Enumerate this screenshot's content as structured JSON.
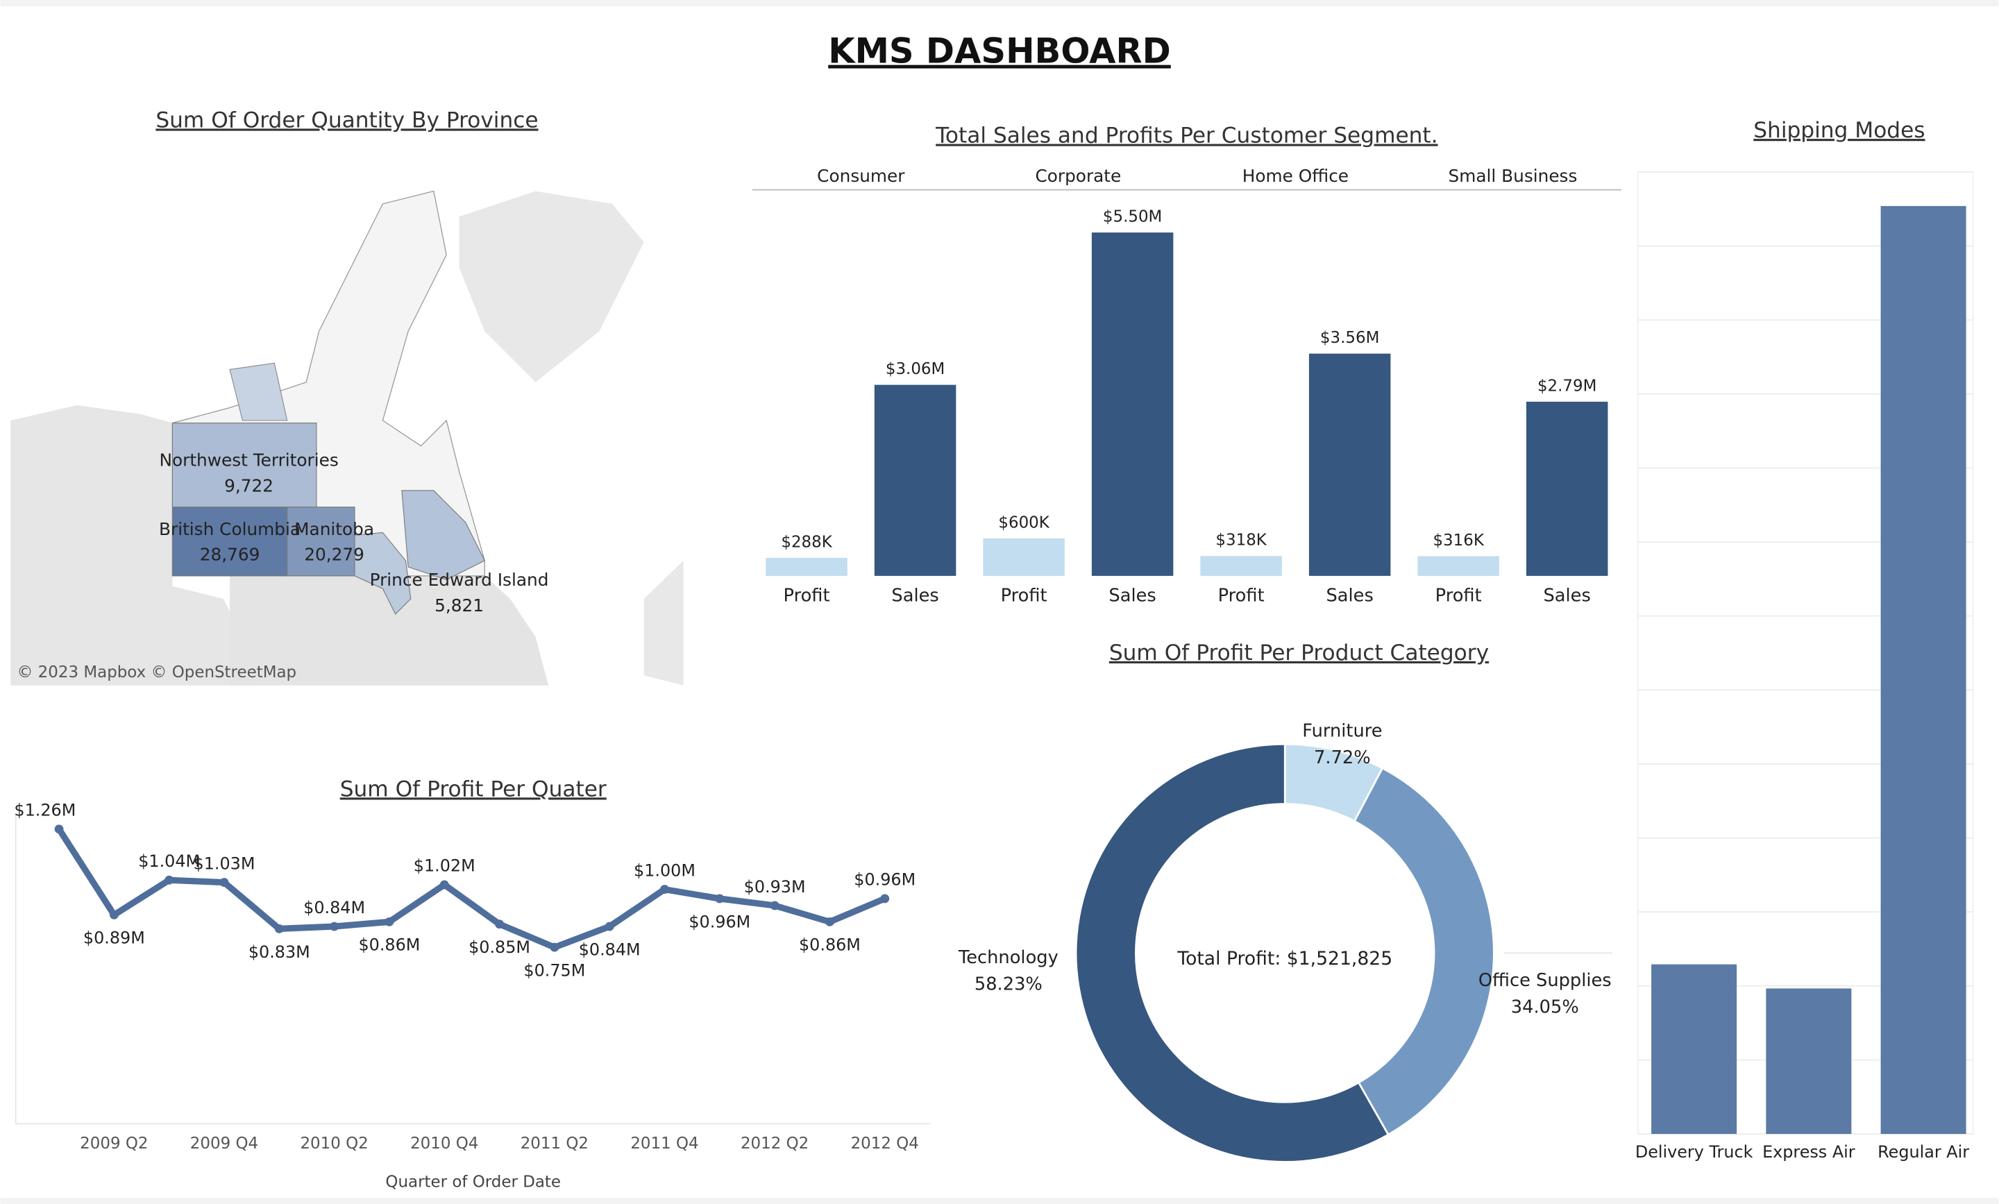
{
  "title": "KMS DASHBOARD",
  "chart_data": [
    {
      "type": "map",
      "title": "Sum Of Order Quantity By Province",
      "attribution": "© 2023 Mapbox © OpenStreetMap",
      "regions": [
        "Northwest Territories",
        "British Columbia",
        "Manitoba",
        "Prince Edward Island"
      ],
      "values": [
        9722,
        28769,
        20279,
        5821
      ],
      "value_labels": [
        "9,722",
        "28,769",
        "20,279",
        "5,821"
      ]
    },
    {
      "type": "bar",
      "title": "Total Sales and Profits Per Customer Segment.",
      "categories": [
        "Consumer",
        "Corporate",
        "Home Office",
        "Small Business"
      ],
      "ylim": [
        0,
        6000000
      ],
      "series": [
        {
          "name": "Profit",
          "color": "#c2ddef",
          "values": [
            288000,
            600000,
            318000,
            316000
          ],
          "value_labels": [
            "$288K",
            "$600K",
            "$318K",
            "$316K"
          ]
        },
        {
          "name": "Sales",
          "color": "#36577f",
          "values": [
            3060000,
            5500000,
            3560000,
            2790000
          ],
          "value_labels": [
            "$3.06M",
            "$5.50M",
            "$3.56M",
            "$2.79M"
          ]
        }
      ]
    },
    {
      "type": "line",
      "title": "Sum Of Profit Per Quater",
      "xlabel": "Quarter of Order Date",
      "color": "#4f6e9b",
      "categories": [
        null,
        "2009 Q2",
        null,
        "2009 Q4",
        null,
        "2010 Q2",
        null,
        "2010 Q4",
        null,
        "2011 Q2",
        null,
        "2011 Q4",
        null,
        "2012 Q2",
        null,
        "2012 Q4"
      ],
      "values": [
        1260000,
        890000,
        1040000,
        1030000,
        830000,
        840000,
        860000,
        1020000,
        850000,
        750000,
        840000,
        1000000,
        960000,
        930000,
        860000,
        960000
      ],
      "value_labels": [
        "$1.26M",
        "$0.89M",
        "$1.04M",
        "$1.03M",
        "$0.83M",
        "$0.84M",
        "$0.86M",
        "$1.02M",
        "$0.85M",
        "$0.75M",
        "$0.84M",
        "$1.00M",
        "$0.96M",
        "$0.93M",
        "$0.86M",
        "$0.96M"
      ],
      "ylim": [
        0,
        1330000
      ]
    },
    {
      "type": "pie",
      "title": "Sum Of Profit Per Product Category",
      "center_label": "Total Profit: $1,521,825",
      "categories": [
        "Furniture",
        "Office Supplies",
        "Technology"
      ],
      "values": [
        7.72,
        34.05,
        58.23
      ],
      "value_labels": [
        "7.72%",
        "34.05%",
        "58.23%"
      ],
      "colors": [
        "#c2ddef",
        "#7399c2",
        "#36577f"
      ]
    },
    {
      "type": "bar",
      "title": "Shipping Modes",
      "color": "#5b7aa5",
      "grid": true,
      "categories": [
        "Delivery Truck",
        "Express Air",
        "Regular Air"
      ],
      "values": [
        1146,
        983,
        6270
      ],
      "ylim": [
        0,
        6500
      ],
      "yticks": [
        0,
        500,
        1000,
        1500,
        2000,
        2500,
        3000,
        3500,
        4000,
        4500,
        5000,
        5500,
        6000,
        6500
      ]
    }
  ]
}
